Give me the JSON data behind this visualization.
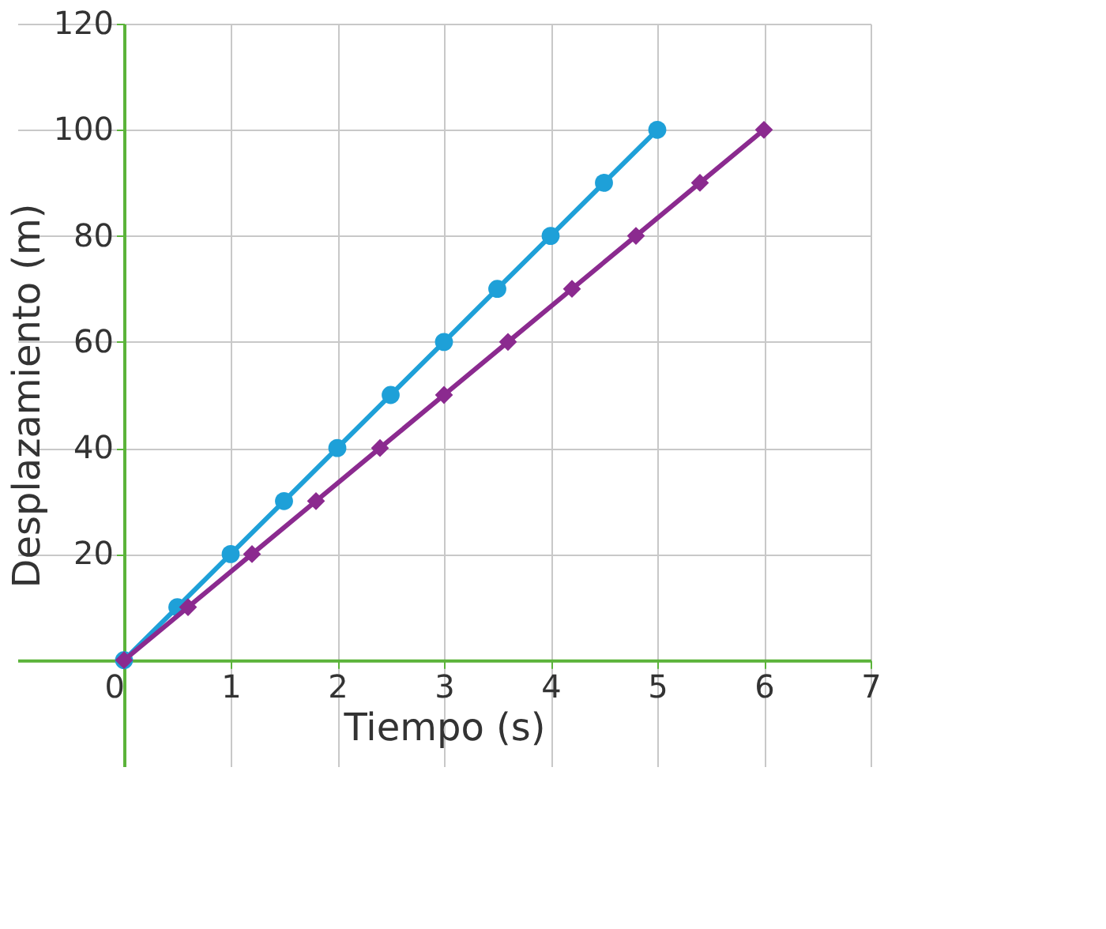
{
  "chart_data": {
    "type": "line",
    "xlabel": "Tiempo (s)",
    "ylabel": "Desplazamiento (m)",
    "xlim": [
      -1,
      7
    ],
    "ylim": [
      -20,
      120
    ],
    "xticks": [
      0,
      1,
      2,
      3,
      4,
      5,
      6,
      7
    ],
    "yticks": [
      {
        "value": 0,
        "label": null
      },
      20,
      40,
      60,
      80,
      100,
      120
    ],
    "grid": true,
    "series": [
      {
        "color": "#1ea0d8",
        "marker": "circle",
        "x": [
          0,
          0.5,
          1,
          1.5,
          2,
          2.5,
          3,
          3.5,
          4,
          4.5,
          5
        ],
        "values": [
          0,
          10,
          20,
          30,
          40,
          50,
          60,
          70,
          80,
          90,
          100
        ]
      },
      {
        "color": "#8b2a8f",
        "marker": "diamond",
        "x": [
          0,
          0.6,
          1.2,
          1.8,
          2.4,
          3,
          3.6,
          4.2,
          4.8,
          5.4,
          6
        ],
        "values": [
          0,
          10,
          20,
          30,
          40,
          50,
          60,
          70,
          80,
          90,
          100
        ]
      }
    ]
  }
}
